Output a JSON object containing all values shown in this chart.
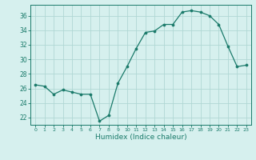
{
  "x": [
    0,
    1,
    2,
    3,
    4,
    5,
    6,
    7,
    8,
    9,
    10,
    11,
    12,
    13,
    14,
    15,
    16,
    17,
    18,
    19,
    20,
    21,
    22,
    23
  ],
  "y": [
    26.5,
    26.3,
    25.2,
    25.8,
    25.5,
    25.2,
    25.2,
    21.5,
    22.3,
    26.7,
    29.0,
    31.5,
    33.7,
    33.9,
    34.8,
    34.8,
    36.5,
    36.7,
    36.5,
    36.0,
    34.8,
    31.8,
    29.0,
    29.2
  ],
  "line_color": "#1a7a6a",
  "marker_color": "#1a7a6a",
  "bg_color": "#d6f0ee",
  "grid_color": "#b0d8d4",
  "xlabel": "Humidex (Indice chaleur)",
  "ylabel_ticks": [
    22,
    24,
    26,
    28,
    30,
    32,
    34,
    36
  ],
  "xticks": [
    0,
    1,
    2,
    3,
    4,
    5,
    6,
    7,
    8,
    9,
    10,
    11,
    12,
    13,
    14,
    15,
    16,
    17,
    18,
    19,
    20,
    21,
    22,
    23
  ],
  "ylim": [
    21.0,
    37.5
  ],
  "xlim": [
    -0.5,
    23.5
  ],
  "tick_color": "#1a7a6a",
  "spine_color": "#1a7a6a"
}
